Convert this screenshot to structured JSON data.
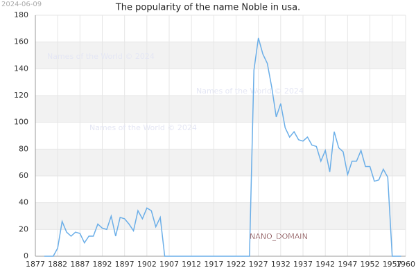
{
  "chart_data": {
    "type": "line",
    "title": "The popularity of the name Noble in usa.",
    "date": "2024-06-09",
    "watermarks": [
      "Names of the World © 2024",
      "Names of the World © 2024",
      "Names of the World © 2024"
    ],
    "annotation": "NANO_DOMAIN",
    "color": "#6aaee8",
    "grid": true,
    "x": [
      1879,
      1880,
      1881,
      1882,
      1883,
      1884,
      1885,
      1886,
      1887,
      1888,
      1889,
      1890,
      1891,
      1892,
      1893,
      1894,
      1895,
      1896,
      1897,
      1898,
      1899,
      1900,
      1901,
      1902,
      1903,
      1904,
      1905,
      1906,
      1907,
      1908,
      1909,
      1910,
      1911,
      1912,
      1913,
      1914,
      1915,
      1916,
      1917,
      1918,
      1919,
      1920,
      1921,
      1922,
      1923,
      1924,
      1925,
      1926,
      1927,
      1928,
      1929,
      1930,
      1931,
      1932,
      1933,
      1934,
      1935,
      1936,
      1937,
      1938,
      1939,
      1940,
      1941,
      1942,
      1943,
      1944,
      1945,
      1946,
      1947,
      1948,
      1949,
      1950,
      1951,
      1952,
      1953,
      1954,
      1955,
      1956,
      1957,
      1958,
      1959
    ],
    "values": [
      0,
      0,
      0,
      6,
      26,
      18,
      15,
      18,
      17,
      10,
      15,
      15,
      24,
      21,
      20,
      30,
      15,
      29,
      28,
      24,
      19,
      34,
      28,
      36,
      34,
      22,
      29,
      0,
      0,
      0,
      0,
      0,
      0,
      0,
      0,
      0,
      0,
      0,
      0,
      0,
      0,
      0,
      0,
      0,
      0,
      0,
      0,
      139,
      163,
      151,
      144,
      126,
      104,
      114,
      96,
      89,
      93,
      87,
      86,
      89,
      83,
      82,
      71,
      79,
      63,
      93,
      81,
      78,
      61,
      71,
      71,
      79,
      67,
      67,
      56,
      57,
      65,
      59,
      0,
      0,
      0
    ],
    "xlim": [
      1877,
      1960
    ],
    "xticks": [
      1877,
      1882,
      1887,
      1892,
      1897,
      1902,
      1907,
      1912,
      1917,
      1922,
      1927,
      1932,
      1937,
      1942,
      1947,
      1952,
      1957,
      1960
    ],
    "ylim": [
      0,
      180
    ],
    "yticks": [
      0,
      20,
      40,
      60,
      80,
      100,
      120,
      140,
      160,
      180
    ]
  }
}
